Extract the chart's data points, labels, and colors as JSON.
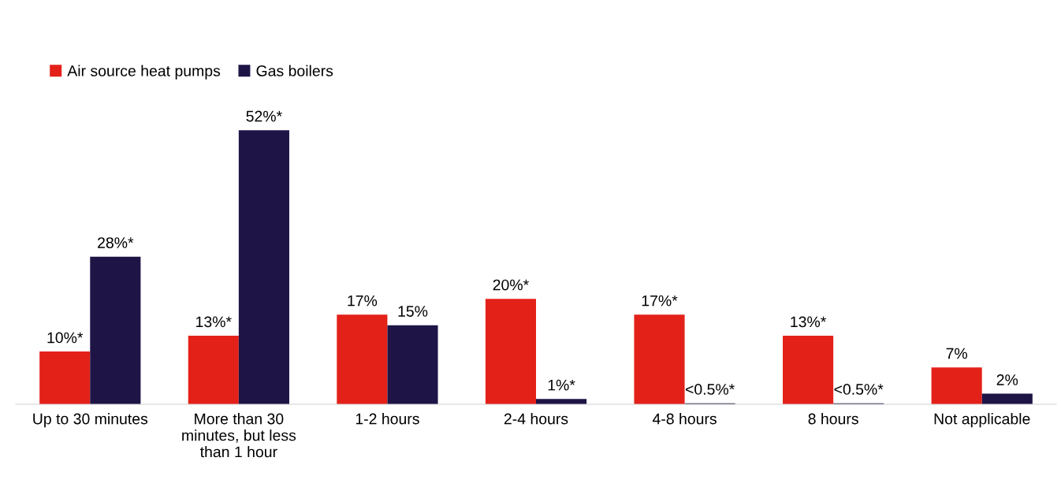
{
  "chart_data": {
    "type": "bar",
    "categories": [
      "Up to 30 minutes",
      "More than 30 minutes, but less than 1 hour",
      "1-2 hours",
      "2-4 hours",
      "4-8 hours",
      "8 hours",
      "Not applicable"
    ],
    "series": [
      {
        "name": "Air source heat pumps",
        "color": "#e32119",
        "values": [
          10,
          13,
          17,
          20,
          17,
          13,
          7
        ],
        "value_labels": [
          "10%*",
          "13%*",
          "17%",
          "20%*",
          "17%*",
          "13%*",
          "7%"
        ]
      },
      {
        "name": "Gas boilers",
        "color": "#1f1446",
        "values": [
          28,
          52,
          15,
          1,
          0.2,
          0.2,
          2
        ],
        "value_labels": [
          "28%*",
          "52%*",
          "15%",
          "1%*",
          "<0.5%*",
          "<0.5%*",
          "2%"
        ]
      }
    ],
    "legend": "top left",
    "grid": false
  }
}
